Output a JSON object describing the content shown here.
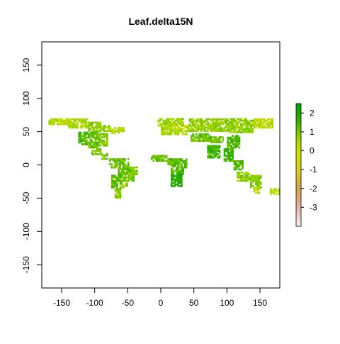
{
  "chart_data": {
    "type": "heatmap",
    "title": "Leaf.delta15N",
    "xlabel": "",
    "ylabel": "",
    "xlim": [
      -180,
      180
    ],
    "ylim": [
      -185,
      185
    ],
    "x_ticks": [
      {
        "value": -150,
        "label": "-150"
      },
      {
        "value": -100,
        "label": "-100"
      },
      {
        "value": -50,
        "label": "-50"
      },
      {
        "value": 0,
        "label": "0"
      },
      {
        "value": 50,
        "label": "50"
      },
      {
        "value": 100,
        "label": "100"
      },
      {
        "value": 150,
        "label": "150"
      }
    ],
    "y_ticks": [
      {
        "value": -150,
        "label": "-150"
      },
      {
        "value": -100,
        "label": "-100"
      },
      {
        "value": -50,
        "label": "-50"
      },
      {
        "value": 0,
        "label": "0"
      },
      {
        "value": 50,
        "label": "50"
      },
      {
        "value": 100,
        "label": "100"
      },
      {
        "value": 150,
        "label": "150"
      }
    ],
    "legend": {
      "placement": "right",
      "range": [
        -4,
        2.5
      ],
      "ticks": [
        {
          "value": 2,
          "label": "2"
        },
        {
          "value": 1,
          "label": "1"
        },
        {
          "value": 0,
          "label": "0"
        },
        {
          "value": -1,
          "label": "-1"
        },
        {
          "value": -2,
          "label": "-2"
        },
        {
          "value": -3,
          "label": "-3"
        }
      ],
      "color_stops": [
        {
          "value": -4,
          "color": "#f2f2f2"
        },
        {
          "value": -3,
          "color": "#e6b4a2"
        },
        {
          "value": -2,
          "color": "#d9a050"
        },
        {
          "value": -1,
          "color": "#d8d226"
        },
        {
          "value": 0,
          "color": "#cfe000"
        },
        {
          "value": 0.5,
          "color": "#a8d800"
        },
        {
          "value": 1,
          "color": "#7cc800"
        },
        {
          "value": 1.5,
          "color": "#44b400"
        },
        {
          "value": 2,
          "color": "#1ea800"
        },
        {
          "value": 2.5,
          "color": "#00a600"
        }
      ]
    },
    "grid": false,
    "cell_size_deg": 2.5,
    "regions": [
      {
        "lon": [
          -170,
          -140
        ],
        "lat": [
          60,
          70
        ],
        "value": 0.3
      },
      {
        "lon": [
          -140,
          -110
        ],
        "lat": [
          55,
          70
        ],
        "value": 0.5
      },
      {
        "lon": [
          -110,
          -90
        ],
        "lat": [
          50,
          65
        ],
        "value": 0.8
      },
      {
        "lon": [
          -90,
          -75
        ],
        "lat": [
          50,
          60
        ],
        "value": 0.7
      },
      {
        "lon": [
          -75,
          -55
        ],
        "lat": [
          47,
          55
        ],
        "value": 0.4
      },
      {
        "lon": [
          -125,
          -110
        ],
        "lat": [
          30,
          50
        ],
        "value": 1.4
      },
      {
        "lon": [
          -110,
          -95
        ],
        "lat": [
          25,
          50
        ],
        "value": 1.2
      },
      {
        "lon": [
          -95,
          -80
        ],
        "lat": [
          28,
          47
        ],
        "value": 0.9
      },
      {
        "lon": [
          -105,
          -90
        ],
        "lat": [
          15,
          25
        ],
        "value": 1.0
      },
      {
        "lon": [
          -90,
          -80
        ],
        "lat": [
          8,
          18
        ],
        "value": 1.1
      },
      {
        "lon": [
          -78,
          -50
        ],
        "lat": [
          -5,
          10
        ],
        "value": 1.2
      },
      {
        "lon": [
          -50,
          -36
        ],
        "lat": [
          -15,
          -3
        ],
        "value": 0.9
      },
      {
        "lon": [
          -65,
          -40
        ],
        "lat": [
          -25,
          -5
        ],
        "value": 1.1
      },
      {
        "lon": [
          -75,
          -60
        ],
        "lat": [
          -35,
          -15
        ],
        "value": 1.3
      },
      {
        "lon": [
          -70,
          -60
        ],
        "lat": [
          -50,
          -35
        ],
        "value": 0.9
      },
      {
        "lon": [
          -60,
          -50
        ],
        "lat": [
          -35,
          -25
        ],
        "value": 0.8
      },
      {
        "lon": [
          -5,
          35
        ],
        "lat": [
          58,
          70
        ],
        "value": 0.6
      },
      {
        "lon": [
          0,
          40
        ],
        "lat": [
          45,
          58
        ],
        "value": 0.4
      },
      {
        "lon": [
          40,
          100
        ],
        "lat": [
          50,
          70
        ],
        "value": 0.7
      },
      {
        "lon": [
          100,
          140
        ],
        "lat": [
          48,
          70
        ],
        "value": 0.8
      },
      {
        "lon": [
          140,
          170
        ],
        "lat": [
          55,
          68
        ],
        "value": 0.3
      },
      {
        "lon": [
          45,
          75
        ],
        "lat": [
          35,
          47
        ],
        "value": 1.2
      },
      {
        "lon": [
          75,
          95
        ],
        "lat": [
          33,
          42
        ],
        "value": 1.0
      },
      {
        "lon": [
          100,
          120
        ],
        "lat": [
          25,
          45
        ],
        "value": 1.4
      },
      {
        "lon": [
          70,
          88
        ],
        "lat": [
          10,
          30
        ],
        "value": 1.6
      },
      {
        "lon": [
          95,
          110
        ],
        "lat": [
          5,
          25
        ],
        "value": 1.5
      },
      {
        "lon": [
          110,
          125
        ],
        "lat": [
          -8,
          5
        ],
        "value": 1.6
      },
      {
        "lon": [
          -15,
          10
        ],
        "lat": [
          5,
          15
        ],
        "value": 1.2
      },
      {
        "lon": [
          10,
          30
        ],
        "lat": [
          0,
          10
        ],
        "value": 1.3
      },
      {
        "lon": [
          30,
          40
        ],
        "lat": [
          -5,
          10
        ],
        "value": 1.5
      },
      {
        "lon": [
          15,
          35
        ],
        "lat": [
          -15,
          0
        ],
        "value": 1.4
      },
      {
        "lon": [
          15,
          32
        ],
        "lat": [
          -33,
          -15
        ],
        "value": 2.0
      },
      {
        "lon": [
          115,
          135
        ],
        "lat": [
          -25,
          -12
        ],
        "value": 0.8
      },
      {
        "lon": [
          135,
          152
        ],
        "lat": [
          -35,
          -15
        ],
        "value": 0.9
      },
      {
        "lon": [
          140,
          150
        ],
        "lat": [
          -43,
          -35
        ],
        "value": 0.3
      },
      {
        "lon": [
          165,
          178
        ],
        "lat": [
          -45,
          -36
        ],
        "value": 0.2
      }
    ]
  }
}
